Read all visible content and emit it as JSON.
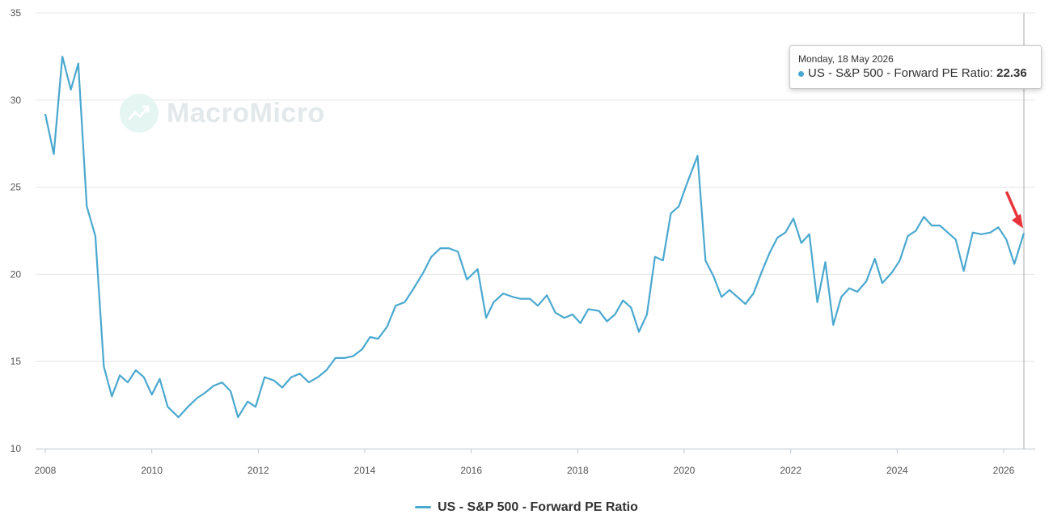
{
  "watermark": {
    "text": "MacroMicro",
    "color": "#e3e8ea",
    "logo_color": "#e4f5f2",
    "logo_icon": "rising-chart-icon"
  },
  "legend": {
    "label": "US - S&P 500 - Forward PE Ratio",
    "color": "#4aa8cf"
  },
  "tooltip": {
    "date": "Monday, 18 May 2026",
    "series": "US - S&P 500 - Forward PE Ratio: ",
    "value": "22.36",
    "dot_color": "#4aa8cf"
  },
  "annotation": {
    "type": "arrow",
    "color": "#e8333a",
    "points_to_x": 2026.38
  },
  "chart_data": {
    "type": "line",
    "title": "",
    "xlabel": "",
    "ylabel": "",
    "xlim": [
      2008,
      2026.5
    ],
    "ylim": [
      10,
      35
    ],
    "x_ticks": [
      "2008",
      "2010",
      "2012",
      "2014",
      "2016",
      "2018",
      "2020",
      "2022",
      "2024",
      "2026"
    ],
    "y_ticks": [
      "10",
      "15",
      "20",
      "25",
      "30",
      "35"
    ],
    "grid": "horizontal",
    "legend_position": "bottom-center",
    "crosshair_x": 2026.38,
    "series": [
      {
        "name": "US - S&P 500 - Forward PE Ratio",
        "color": "#4aa8cf",
        "x": [
          2008.0,
          2008.16,
          2008.32,
          2008.48,
          2008.62,
          2008.78,
          2008.94,
          2009.1,
          2009.25,
          2009.4,
          2009.55,
          2009.7,
          2009.85,
          2010.0,
          2010.15,
          2010.3,
          2010.5,
          2010.68,
          2010.85,
          2011.0,
          2011.16,
          2011.32,
          2011.48,
          2011.62,
          2011.8,
          2011.95,
          2012.12,
          2012.3,
          2012.45,
          2012.62,
          2012.78,
          2012.95,
          2013.12,
          2013.28,
          2013.45,
          2013.62,
          2013.78,
          2013.95,
          2014.1,
          2014.25,
          2014.42,
          2014.58,
          2014.75,
          2014.92,
          2015.1,
          2015.25,
          2015.42,
          2015.58,
          2015.75,
          2015.92,
          2016.12,
          2016.28,
          2016.42,
          2016.6,
          2016.78,
          2016.92,
          2017.1,
          2017.25,
          2017.42,
          2017.58,
          2017.75,
          2017.9,
          2018.05,
          2018.2,
          2018.4,
          2018.55,
          2018.7,
          2018.85,
          2019.0,
          2019.15,
          2019.3,
          2019.45,
          2019.6,
          2019.75,
          2019.9,
          2020.05,
          2020.25,
          2020.4,
          2020.55,
          2020.7,
          2020.85,
          2021.0,
          2021.15,
          2021.3,
          2021.45,
          2021.6,
          2021.75,
          2021.9,
          2022.05,
          2022.2,
          2022.35,
          2022.5,
          2022.65,
          2022.8,
          2022.95,
          2023.1,
          2023.25,
          2023.42,
          2023.58,
          2023.72,
          2023.9,
          2024.05,
          2024.2,
          2024.35,
          2024.5,
          2024.65,
          2024.8,
          2024.95,
          2025.1,
          2025.25,
          2025.42,
          2025.58,
          2025.75,
          2025.9,
          2026.05,
          2026.2,
          2026.38
        ],
        "values": [
          29.2,
          26.9,
          32.5,
          30.6,
          32.1,
          23.9,
          22.2,
          14.7,
          13.0,
          14.2,
          13.8,
          14.5,
          14.1,
          13.1,
          14.0,
          12.4,
          11.8,
          12.4,
          12.9,
          13.2,
          13.6,
          13.8,
          13.3,
          11.8,
          12.7,
          12.4,
          14.1,
          13.9,
          13.5,
          14.1,
          14.3,
          13.8,
          14.1,
          14.5,
          15.2,
          15.2,
          15.3,
          15.7,
          16.4,
          16.3,
          17.0,
          18.2,
          18.4,
          19.2,
          20.1,
          21.0,
          21.5,
          21.5,
          21.3,
          19.7,
          20.3,
          17.5,
          18.4,
          18.9,
          18.7,
          18.6,
          18.6,
          18.2,
          18.8,
          17.8,
          17.5,
          17.7,
          17.2,
          18.0,
          17.9,
          17.3,
          17.7,
          18.5,
          18.1,
          16.7,
          17.7,
          21.0,
          20.8,
          23.5,
          23.9,
          25.2,
          26.8,
          20.8,
          19.9,
          18.7,
          19.1,
          18.7,
          18.3,
          18.9,
          20.1,
          21.2,
          22.1,
          22.4,
          23.2,
          21.8,
          22.3,
          18.4,
          20.7,
          17.1,
          18.7,
          19.2,
          19.0,
          19.6,
          20.9,
          19.5,
          20.1,
          20.8,
          22.2,
          22.5,
          23.3,
          22.8,
          22.8,
          22.4,
          22.0,
          20.2,
          22.4,
          22.3,
          22.4,
          22.7,
          22.0,
          20.6,
          22.36
        ]
      }
    ]
  }
}
